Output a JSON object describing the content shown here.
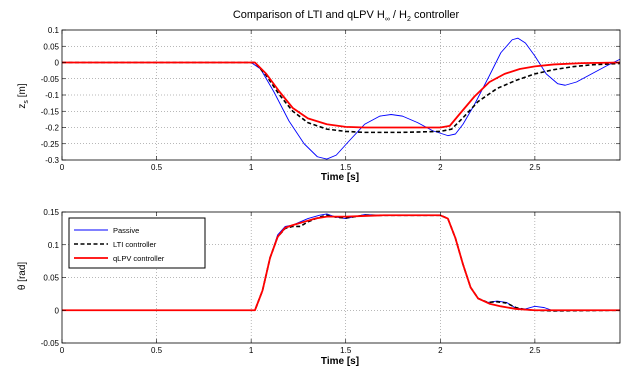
{
  "chart_data": [
    {
      "type": "line",
      "title_parts": {
        "prefix": "Comparison of LTI and qLPV H",
        "sub1": "∞",
        "middle": " / H",
        "sub2": "2",
        "suffix": " controller"
      },
      "xlabel": "Time [s]",
      "ylabel_parts": {
        "main": "z",
        "sub": "s",
        "unit": " [m]"
      },
      "xlim": [
        0,
        2.95
      ],
      "ylim": [
        -0.3,
        0.1
      ],
      "xticks": [
        0,
        0.5,
        1,
        1.5,
        2,
        2.5
      ],
      "xtick_labels": [
        "0",
        "0.5",
        "1",
        "1.5",
        "2",
        "2.5"
      ],
      "yticks": [
        -0.3,
        -0.25,
        -0.2,
        -0.15,
        -0.1,
        -0.05,
        0,
        0.05,
        0.1
      ],
      "ytick_labels": [
        "-0.3",
        "-0.25",
        "-0.2",
        "-0.15",
        "-0.1",
        "-0.05",
        "0",
        "0.05",
        "0.1"
      ],
      "grid": true,
      "series": [
        {
          "name": "Passive",
          "color": "#0000ff",
          "style": "solid",
          "points": [
            [
              0,
              0
            ],
            [
              1.0,
              0
            ],
            [
              1.05,
              -0.02
            ],
            [
              1.12,
              -0.09
            ],
            [
              1.2,
              -0.18
            ],
            [
              1.28,
              -0.25
            ],
            [
              1.35,
              -0.29
            ],
            [
              1.4,
              -0.297
            ],
            [
              1.45,
              -0.285
            ],
            [
              1.52,
              -0.24
            ],
            [
              1.6,
              -0.19
            ],
            [
              1.68,
              -0.165
            ],
            [
              1.74,
              -0.16
            ],
            [
              1.8,
              -0.165
            ],
            [
              1.88,
              -0.185
            ],
            [
              1.96,
              -0.21
            ],
            [
              2.04,
              -0.225
            ],
            [
              2.08,
              -0.22
            ],
            [
              2.12,
              -0.19
            ],
            [
              2.18,
              -0.13
            ],
            [
              2.26,
              -0.04
            ],
            [
              2.32,
              0.03
            ],
            [
              2.38,
              0.07
            ],
            [
              2.41,
              0.075
            ],
            [
              2.45,
              0.06
            ],
            [
              2.5,
              0.02
            ],
            [
              2.56,
              -0.035
            ],
            [
              2.62,
              -0.065
            ],
            [
              2.66,
              -0.07
            ],
            [
              2.72,
              -0.06
            ],
            [
              2.8,
              -0.035
            ],
            [
              2.88,
              -0.01
            ],
            [
              2.95,
              0.01
            ]
          ]
        },
        {
          "name": "LTI controller",
          "color": "#000000",
          "style": "dashed",
          "points": [
            [
              0,
              0
            ],
            [
              1.02,
              0
            ],
            [
              1.08,
              -0.04
            ],
            [
              1.15,
              -0.1
            ],
            [
              1.22,
              -0.15
            ],
            [
              1.3,
              -0.185
            ],
            [
              1.4,
              -0.205
            ],
            [
              1.5,
              -0.212
            ],
            [
              1.6,
              -0.215
            ],
            [
              1.8,
              -0.215
            ],
            [
              2.0,
              -0.212
            ],
            [
              2.06,
              -0.205
            ],
            [
              2.12,
              -0.17
            ],
            [
              2.2,
              -0.12
            ],
            [
              2.3,
              -0.08
            ],
            [
              2.4,
              -0.055
            ],
            [
              2.5,
              -0.035
            ],
            [
              2.6,
              -0.022
            ],
            [
              2.7,
              -0.013
            ],
            [
              2.8,
              -0.007
            ],
            [
              2.95,
              -0.003
            ]
          ]
        },
        {
          "name": "qLPV controller",
          "color": "#ff0000",
          "style": "solid",
          "points": [
            [
              0,
              0
            ],
            [
              1.02,
              0
            ],
            [
              1.08,
              -0.035
            ],
            [
              1.15,
              -0.09
            ],
            [
              1.22,
              -0.14
            ],
            [
              1.3,
              -0.172
            ],
            [
              1.4,
              -0.19
            ],
            [
              1.5,
              -0.198
            ],
            [
              1.6,
              -0.2
            ],
            [
              1.8,
              -0.2
            ],
            [
              2.0,
              -0.2
            ],
            [
              2.05,
              -0.195
            ],
            [
              2.1,
              -0.16
            ],
            [
              2.18,
              -0.105
            ],
            [
              2.26,
              -0.06
            ],
            [
              2.34,
              -0.035
            ],
            [
              2.42,
              -0.02
            ],
            [
              2.5,
              -0.012
            ],
            [
              2.6,
              -0.006
            ],
            [
              2.75,
              -0.002
            ],
            [
              2.95,
              0
            ]
          ]
        }
      ]
    },
    {
      "type": "line",
      "xlabel": "Time [s]",
      "ylabel": "θ [rad]",
      "xlim": [
        0,
        2.95
      ],
      "ylim": [
        -0.05,
        0.15
      ],
      "xticks": [
        0,
        0.5,
        1,
        1.5,
        2,
        2.5
      ],
      "xtick_labels": [
        "0",
        "0.5",
        "1",
        "1.5",
        "2",
        "2.5"
      ],
      "yticks": [
        -0.05,
        0,
        0.05,
        0.1,
        0.15
      ],
      "ytick_labels": [
        "-0.05",
        "0",
        "0.05",
        "0.1",
        "0.15"
      ],
      "grid": true,
      "legend": {
        "position": "top-left",
        "entries": [
          "Passive",
          "LTI controller",
          "qLPV controller"
        ]
      },
      "series": [
        {
          "name": "Passive",
          "color": "#0000ff",
          "style": "solid",
          "points": [
            [
              0,
              0
            ],
            [
              1.02,
              0
            ],
            [
              1.06,
              0.03
            ],
            [
              1.1,
              0.08
            ],
            [
              1.14,
              0.115
            ],
            [
              1.18,
              0.128
            ],
            [
              1.22,
              0.13
            ],
            [
              1.26,
              0.135
            ],
            [
              1.3,
              0.14
            ],
            [
              1.36,
              0.145
            ],
            [
              1.4,
              0.147
            ],
            [
              1.45,
              0.142
            ],
            [
              1.5,
              0.14
            ],
            [
              1.55,
              0.143
            ],
            [
              1.6,
              0.146
            ],
            [
              1.7,
              0.145
            ],
            [
              1.8,
              0.145
            ],
            [
              1.9,
              0.145
            ],
            [
              2.0,
              0.145
            ],
            [
              2.04,
              0.14
            ],
            [
              2.08,
              0.11
            ],
            [
              2.12,
              0.07
            ],
            [
              2.16,
              0.035
            ],
            [
              2.2,
              0.018
            ],
            [
              2.25,
              0.012
            ],
            [
              2.3,
              0.014
            ],
            [
              2.35,
              0.012
            ],
            [
              2.4,
              0.003
            ],
            [
              2.45,
              0.002
            ],
            [
              2.5,
              0.006
            ],
            [
              2.55,
              0.004
            ],
            [
              2.6,
              -0.001
            ],
            [
              2.7,
              0
            ],
            [
              2.95,
              0
            ]
          ]
        },
        {
          "name": "LTI controller",
          "color": "#000000",
          "style": "dashed",
          "points": [
            [
              0,
              0
            ],
            [
              1.02,
              0
            ],
            [
              1.06,
              0.03
            ],
            [
              1.1,
              0.08
            ],
            [
              1.14,
              0.112
            ],
            [
              1.18,
              0.125
            ],
            [
              1.22,
              0.128
            ],
            [
              1.26,
              0.128
            ],
            [
              1.3,
              0.135
            ],
            [
              1.36,
              0.142
            ],
            [
              1.4,
              0.145
            ],
            [
              1.45,
              0.142
            ],
            [
              1.5,
              0.141
            ],
            [
              1.55,
              0.143
            ],
            [
              1.6,
              0.145
            ],
            [
              1.7,
              0.145
            ],
            [
              1.8,
              0.145
            ],
            [
              1.9,
              0.145
            ],
            [
              2.0,
              0.145
            ],
            [
              2.04,
              0.14
            ],
            [
              2.08,
              0.11
            ],
            [
              2.12,
              0.07
            ],
            [
              2.16,
              0.035
            ],
            [
              2.2,
              0.018
            ],
            [
              2.25,
              0.012
            ],
            [
              2.3,
              0.013
            ],
            [
              2.35,
              0.011
            ],
            [
              2.4,
              0.004
            ],
            [
              2.45,
              0.001
            ],
            [
              2.5,
              0
            ],
            [
              2.6,
              -0.001
            ],
            [
              2.95,
              0
            ]
          ]
        },
        {
          "name": "qLPV controller",
          "color": "#ff0000",
          "style": "solid",
          "points": [
            [
              0,
              0
            ],
            [
              1.02,
              0
            ],
            [
              1.06,
              0.03
            ],
            [
              1.1,
              0.08
            ],
            [
              1.14,
              0.112
            ],
            [
              1.18,
              0.126
            ],
            [
              1.22,
              0.13
            ],
            [
              1.28,
              0.135
            ],
            [
              1.34,
              0.14
            ],
            [
              1.4,
              0.143
            ],
            [
              1.5,
              0.143
            ],
            [
              1.6,
              0.144
            ],
            [
              1.7,
              0.145
            ],
            [
              1.8,
              0.145
            ],
            [
              1.9,
              0.145
            ],
            [
              2.0,
              0.145
            ],
            [
              2.04,
              0.14
            ],
            [
              2.08,
              0.11
            ],
            [
              2.12,
              0.07
            ],
            [
              2.16,
              0.035
            ],
            [
              2.2,
              0.018
            ],
            [
              2.26,
              0.01
            ],
            [
              2.32,
              0.006
            ],
            [
              2.4,
              0.002
            ],
            [
              2.5,
              0
            ],
            [
              2.95,
              0
            ]
          ]
        }
      ]
    }
  ]
}
